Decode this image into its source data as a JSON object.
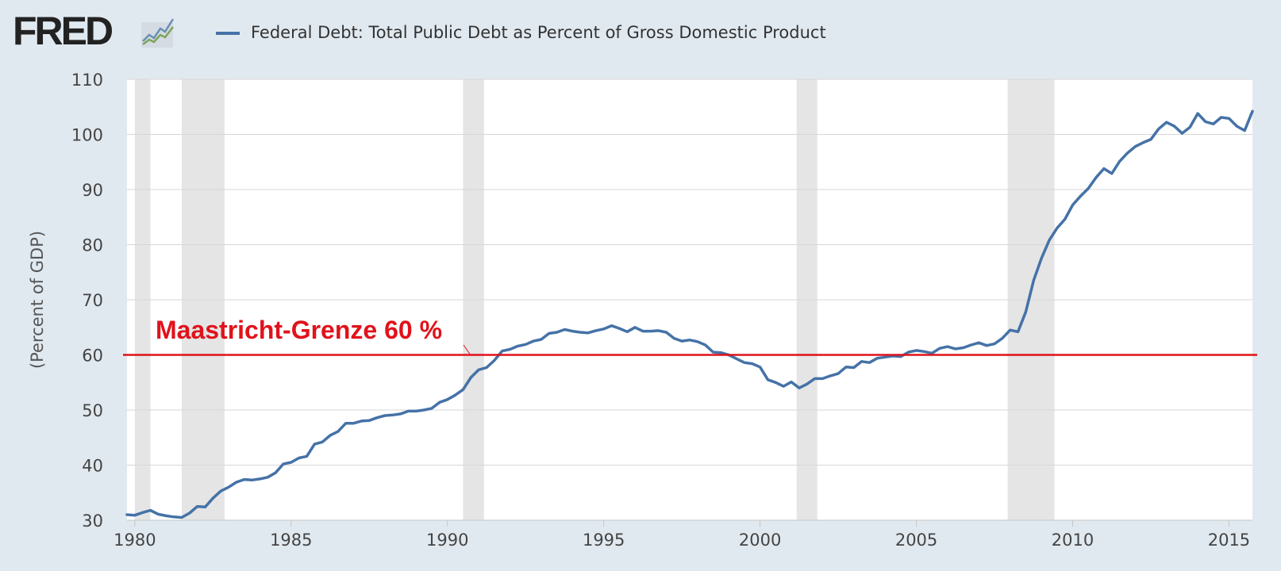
{
  "header": {
    "logo_text": "FRED",
    "logo_icon": "chart-line-icon",
    "legend_label": "Federal Debt: Total Public Debt as Percent of Gross Domestic Product"
  },
  "colors": {
    "series": "#4572a7",
    "threshold": "#e0121b",
    "recession": "#e5e5e5",
    "grid": "#d7d7d7",
    "background": "#e1e9f0"
  },
  "chart_data": {
    "type": "line",
    "title": "",
    "xlabel": "",
    "ylabel": "(Percent of GDP)",
    "xlim": [
      1979.75,
      2015.75
    ],
    "ylim": [
      30,
      110
    ],
    "yticks": [
      30,
      40,
      50,
      60,
      70,
      80,
      90,
      100,
      110
    ],
    "xticks": [
      1980,
      1985,
      1990,
      1995,
      2000,
      2005,
      2010,
      2015
    ],
    "grid": true,
    "legend": "top-left",
    "recessions": [
      [
        1980.0,
        1980.5
      ],
      [
        1981.5,
        1982.87
      ],
      [
        1990.5,
        1991.17
      ],
      [
        2001.17,
        2001.83
      ],
      [
        2007.92,
        2009.42
      ]
    ],
    "threshold": {
      "value": 60,
      "label": "Maastricht-Grenze 60 %"
    },
    "series": [
      {
        "name": "Federal Debt: Total Public Debt as Percent of Gross Domestic Product",
        "x_start": 1979.75,
        "x_step": 0.25,
        "values": [
          31.0,
          30.9,
          31.4,
          31.8,
          31.1,
          30.8,
          30.6,
          30.5,
          31.3,
          32.5,
          32.4,
          34.0,
          35.3,
          36.0,
          36.9,
          37.4,
          37.3,
          37.5,
          37.8,
          38.6,
          40.2,
          40.5,
          41.3,
          41.6,
          43.8,
          44.2,
          45.4,
          46.1,
          47.6,
          47.6,
          48.0,
          48.1,
          48.6,
          49.0,
          49.1,
          49.3,
          49.8,
          49.8,
          50.0,
          50.3,
          51.4,
          51.9,
          52.7,
          53.7,
          55.9,
          57.3,
          57.7,
          59.0,
          60.7,
          61.0,
          61.6,
          61.9,
          62.5,
          62.8,
          63.9,
          64.1,
          64.6,
          64.3,
          64.1,
          64.0,
          64.4,
          64.7,
          65.3,
          64.8,
          64.2,
          65.0,
          64.3,
          64.3,
          64.4,
          64.1,
          63.0,
          62.5,
          62.7,
          62.4,
          61.8,
          60.5,
          60.4,
          60.0,
          59.3,
          58.6,
          58.4,
          57.8,
          55.5,
          55.0,
          54.3,
          55.1,
          54.0,
          54.7,
          55.7,
          55.7,
          56.2,
          56.6,
          57.8,
          57.7,
          58.8,
          58.6,
          59.4,
          59.6,
          59.8,
          59.7,
          60.5,
          60.8,
          60.6,
          60.3,
          61.2,
          61.5,
          61.1,
          61.3,
          61.8,
          62.2,
          61.7,
          62.0,
          63.0,
          64.5,
          64.2,
          67.8,
          73.5,
          77.5,
          80.8,
          83.0,
          84.6,
          87.2,
          88.8,
          90.2,
          92.2,
          93.8,
          92.9,
          95.1,
          96.6,
          97.8,
          98.5,
          99.1,
          101.0,
          102.2,
          101.5,
          100.2,
          101.3,
          103.8,
          102.3,
          101.9,
          103.1,
          102.9,
          101.5,
          100.7,
          104.2
        ]
      }
    ]
  }
}
